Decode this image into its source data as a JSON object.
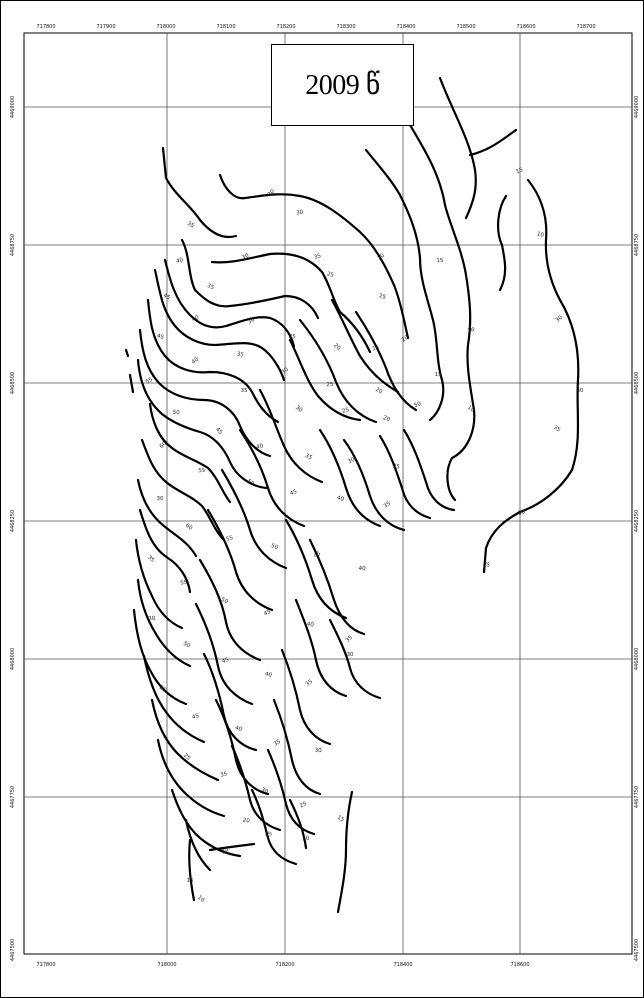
{
  "map": {
    "title": "2009 წ",
    "top_ticks": [
      "717800",
      "717900",
      "718000",
      "718100",
      "718200",
      "718300",
      "718400",
      "718500",
      "718600",
      "718700"
    ],
    "bottom_ticks": [
      "717800",
      "718000",
      "718200",
      "718400",
      "718600"
    ],
    "left_ticks": [
      "4469000",
      "4468750",
      "4468500",
      "4468250",
      "4468000",
      "4467750",
      "4467500"
    ],
    "right_ticks": [
      "4469000",
      "4468750",
      "4468500",
      "4468250",
      "4468000",
      "4467750",
      "4467500"
    ],
    "contour_labels": [
      "30",
      "30",
      "35",
      "30",
      "25",
      "20",
      "15",
      "10",
      "35",
      "25",
      "20",
      "15",
      "10",
      "40",
      "35",
      "30",
      "25",
      "20",
      "15",
      "45",
      "40",
      "35",
      "30",
      "25",
      "20",
      "50",
      "45",
      "40",
      "35",
      "30",
      "25",
      "20",
      "55",
      "50",
      "45",
      "40",
      "35",
      "30",
      "25",
      "60",
      "55",
      "50",
      "45",
      "40",
      "35",
      "30",
      "60",
      "55",
      "50",
      "45",
      "40",
      "35",
      "55",
      "50",
      "45",
      "40",
      "35",
      "30",
      "50",
      "45",
      "40",
      "35",
      "30",
      "25",
      "45",
      "40",
      "35",
      "30",
      "25",
      "35",
      "30",
      "25",
      "20",
      "25",
      "20",
      "15",
      "15",
      "10"
    ],
    "colors": {
      "line": "#000000",
      "grid": "#555555",
      "background": "#ffffff"
    }
  }
}
